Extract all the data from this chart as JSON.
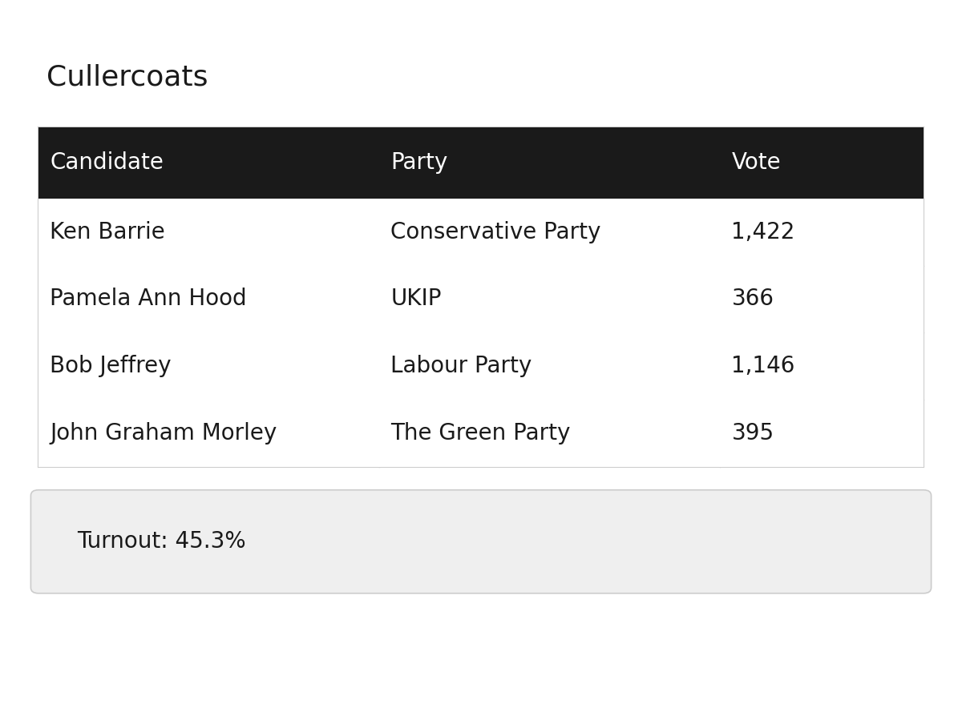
{
  "title": "Cullercoats",
  "headers": [
    "Candidate",
    "Party",
    "Vote"
  ],
  "rows": [
    [
      "Ken Barrie",
      "Conservative Party",
      "1,422"
    ],
    [
      "Pamela Ann Hood",
      "UKIP",
      "366"
    ],
    [
      "Bob Jeffrey",
      "Labour Party",
      "1,146"
    ],
    [
      "John Graham Morley",
      "The Green Party",
      "395"
    ]
  ],
  "turnout": "Turnout: 45.3%",
  "header_bg": "#1a1a1a",
  "header_fg": "#ffffff",
  "row_bg": "#ffffff",
  "row_fg": "#1a1a1a",
  "border_color": "#cccccc",
  "outer_border_color": "#cccccc",
  "title_fg": "#1a1a1a",
  "turnout_bg": "#efefef",
  "turnout_fg": "#1a1a1a",
  "fig_bg": "#ffffff",
  "title_fontsize": 26,
  "header_fontsize": 20,
  "cell_fontsize": 20,
  "turnout_fontsize": 20
}
